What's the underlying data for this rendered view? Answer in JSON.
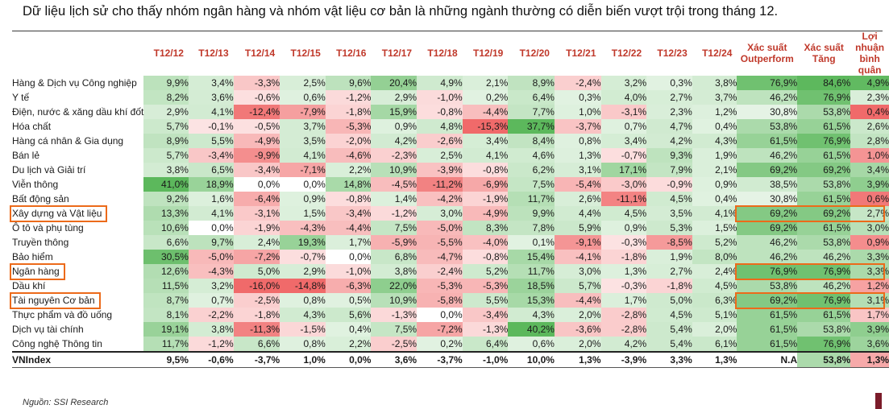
{
  "title": "Dữ liệu lịch sử cho thấy nhóm ngân hàng và nhóm vật liệu cơ bản là những ngành thường có diễn biến vượt trội trong tháng 12.",
  "source": "Nguồn: SSI Research",
  "colors": {
    "positive": "#5cb85c",
    "negative": "#f06a6a",
    "header_text": "#c0392b",
    "highlight": "#ec6a1a",
    "accent": "#7b1c2a"
  },
  "chart_data": {
    "type": "heatmap",
    "columns": [
      "T12/12",
      "T12/13",
      "T12/14",
      "T12/15",
      "T12/16",
      "T12/17",
      "T12/18",
      "T12/19",
      "T12/20",
      "T12/21",
      "T12/22",
      "T12/23",
      "T12/24",
      "Xác suất Outperform",
      "Xác suất Tăng",
      "Lợi nhuận bình quân"
    ],
    "rows": [
      {
        "name": "Hàng & Dịch vụ Công nghiệp",
        "values": [
          "9,9%",
          "3,4%",
          "-3,3%",
          "2,5%",
          "9,6%",
          "20,4%",
          "4,9%",
          "2,1%",
          "8,9%",
          "-2,4%",
          "3,2%",
          "0,3%",
          "3,8%",
          "76,9%",
          "84,6%",
          "4,9%"
        ]
      },
      {
        "name": "Y tế",
        "values": [
          "8,2%",
          "3,6%",
          "-0,6%",
          "0,6%",
          "-1,2%",
          "2,9%",
          "-1,0%",
          "0,2%",
          "6,4%",
          "0,3%",
          "4,0%",
          "2,7%",
          "3,7%",
          "46,2%",
          "76,9%",
          "2,3%"
        ]
      },
      {
        "name": "Điện, nước & xăng dầu khí đốt",
        "values": [
          "2,9%",
          "4,1%",
          "-12,4%",
          "-7,9%",
          "-1,8%",
          "15,9%",
          "-0,8%",
          "-4,4%",
          "7,7%",
          "1,0%",
          "-3,1%",
          "2,3%",
          "1,2%",
          "30,8%",
          "53,8%",
          "0,4%"
        ]
      },
      {
        "name": "Hóa chất",
        "values": [
          "5,7%",
          "-0,1%",
          "-0,5%",
          "3,7%",
          "-5,3%",
          "0,9%",
          "4,8%",
          "-15,3%",
          "37,7%",
          "-3,7%",
          "0,7%",
          "4,7%",
          "0,4%",
          "53,8%",
          "61,5%",
          "2,6%"
        ]
      },
      {
        "name": "Hàng cá nhân & Gia dụng",
        "values": [
          "8,9%",
          "5,5%",
          "-4,9%",
          "3,5%",
          "-2,0%",
          "4,2%",
          "-2,6%",
          "3,4%",
          "8,4%",
          "0,8%",
          "3,4%",
          "4,2%",
          "4,3%",
          "61,5%",
          "76,9%",
          "2,8%"
        ]
      },
      {
        "name": "Bán lẻ",
        "values": [
          "5,7%",
          "-3,4%",
          "-9,9%",
          "4,1%",
          "-4,6%",
          "-2,3%",
          "2,5%",
          "4,1%",
          "4,6%",
          "1,3%",
          "-0,7%",
          "9,3%",
          "1,9%",
          "46,2%",
          "61,5%",
          "1,0%"
        ]
      },
      {
        "name": "Du lịch và Giải trí",
        "values": [
          "3,8%",
          "6,5%",
          "-3,4%",
          "-7,1%",
          "2,2%",
          "10,9%",
          "-3,9%",
          "-0,8%",
          "6,2%",
          "3,1%",
          "17,1%",
          "7,9%",
          "2,1%",
          "69,2%",
          "69,2%",
          "3,4%"
        ]
      },
      {
        "name": "Viễn thông",
        "values": [
          "41,0%",
          "18,9%",
          "0,0%",
          "0,0%",
          "14,8%",
          "-4,5%",
          "-11,2%",
          "-6,9%",
          "7,5%",
          "-5,4%",
          "-3,0%",
          "-0,9%",
          "0,9%",
          "38,5%",
          "53,8%",
          "3,9%"
        ]
      },
      {
        "name": "Bất động sản",
        "values": [
          "9,2%",
          "1,6%",
          "-6,4%",
          "0,9%",
          "-0,8%",
          "1,4%",
          "-4,2%",
          "-1,9%",
          "11,7%",
          "2,6%",
          "-11,1%",
          "4,5%",
          "0,4%",
          "30,8%",
          "61,5%",
          "0,6%"
        ]
      },
      {
        "name": "Xây dựng và Vật liệu",
        "values": [
          "13,3%",
          "4,1%",
          "-3,1%",
          "1,5%",
          "-3,4%",
          "-1,2%",
          "3,0%",
          "-4,9%",
          "9,9%",
          "4,4%",
          "4,5%",
          "3,5%",
          "4,1%",
          "69,2%",
          "69,2%",
          "2,7%"
        ]
      },
      {
        "name": "Ô tô và phụ tùng",
        "values": [
          "10,6%",
          "0,0%",
          "-1,9%",
          "-4,3%",
          "-4,4%",
          "7,5%",
          "-5,0%",
          "8,3%",
          "7,8%",
          "5,9%",
          "0,9%",
          "5,3%",
          "1,5%",
          "69,2%",
          "61,5%",
          "3,0%"
        ]
      },
      {
        "name": "Truyền thông",
        "values": [
          "6,6%",
          "9,7%",
          "2,4%",
          "19,3%",
          "1,7%",
          "-5,9%",
          "-5,5%",
          "-4,0%",
          "0,1%",
          "-9,1%",
          "-0,3%",
          "-8,5%",
          "5,2%",
          "46,2%",
          "53,8%",
          "0,9%"
        ]
      },
      {
        "name": "Bảo hiểm",
        "values": [
          "30,5%",
          "-5,0%",
          "-7,2%",
          "-0,7%",
          "0,0%",
          "6,8%",
          "-4,7%",
          "-0,8%",
          "15,4%",
          "-4,1%",
          "-1,8%",
          "1,9%",
          "8,0%",
          "46,2%",
          "46,2%",
          "3,3%"
        ]
      },
      {
        "name": "Ngân hàng",
        "values": [
          "12,6%",
          "-4,3%",
          "5,0%",
          "2,9%",
          "-1,0%",
          "3,8%",
          "-2,4%",
          "5,2%",
          "11,7%",
          "3,0%",
          "1,3%",
          "2,7%",
          "2,4%",
          "76,9%",
          "76,9%",
          "3,3%"
        ]
      },
      {
        "name": "Dầu khí",
        "values": [
          "11,5%",
          "3,2%",
          "-16,0%",
          "-14,8%",
          "-6,3%",
          "22,0%",
          "-5,3%",
          "-5,3%",
          "18,5%",
          "5,7%",
          "-0,3%",
          "-1,8%",
          "4,5%",
          "53,8%",
          "46,2%",
          "1,2%"
        ]
      },
      {
        "name": "Tài nguyên Cơ bản",
        "values": [
          "8,7%",
          "0,7%",
          "-2,5%",
          "0,8%",
          "0,5%",
          "10,9%",
          "-5,8%",
          "5,5%",
          "15,3%",
          "-4,4%",
          "1,7%",
          "5,0%",
          "6,3%",
          "69,2%",
          "76,9%",
          "3,1%"
        ]
      },
      {
        "name": "Thực phẩm và đồ uống",
        "values": [
          "8,1%",
          "-2,2%",
          "-1,8%",
          "4,3%",
          "5,6%",
          "-1,3%",
          "0,0%",
          "-3,4%",
          "4,3%",
          "2,0%",
          "-2,8%",
          "4,5%",
          "5,1%",
          "61,5%",
          "61,5%",
          "1,7%"
        ]
      },
      {
        "name": "Dịch vụ tài chính",
        "values": [
          "19,1%",
          "3,8%",
          "-11,3%",
          "-1,5%",
          "0,4%",
          "7,5%",
          "-7,2%",
          "-1,3%",
          "40,2%",
          "-3,6%",
          "-2,8%",
          "5,4%",
          "2,0%",
          "61,5%",
          "53,8%",
          "3,9%"
        ]
      },
      {
        "name": "Công nghệ Thông tin",
        "values": [
          "11,7%",
          "-1,2%",
          "6,6%",
          "0,8%",
          "2,2%",
          "-2,5%",
          "0,2%",
          "6,4%",
          "0,6%",
          "2,0%",
          "4,2%",
          "5,4%",
          "6,1%",
          "61,5%",
          "76,9%",
          "3,6%"
        ]
      },
      {
        "name": "VNIndex",
        "values": [
          "9,5%",
          "-0,6%",
          "-3,7%",
          "1,0%",
          "0,0%",
          "3,6%",
          "-3,7%",
          "-1,0%",
          "10,0%",
          "1,3%",
          "-3,9%",
          "3,3%",
          "1,3%",
          "N.A",
          "53,8%",
          "1,3%"
        ]
      }
    ],
    "highlighted_rows": [
      "Xây dựng và Vật liệu",
      "Ngân hàng",
      "Tài nguyên Cơ bản"
    ]
  }
}
